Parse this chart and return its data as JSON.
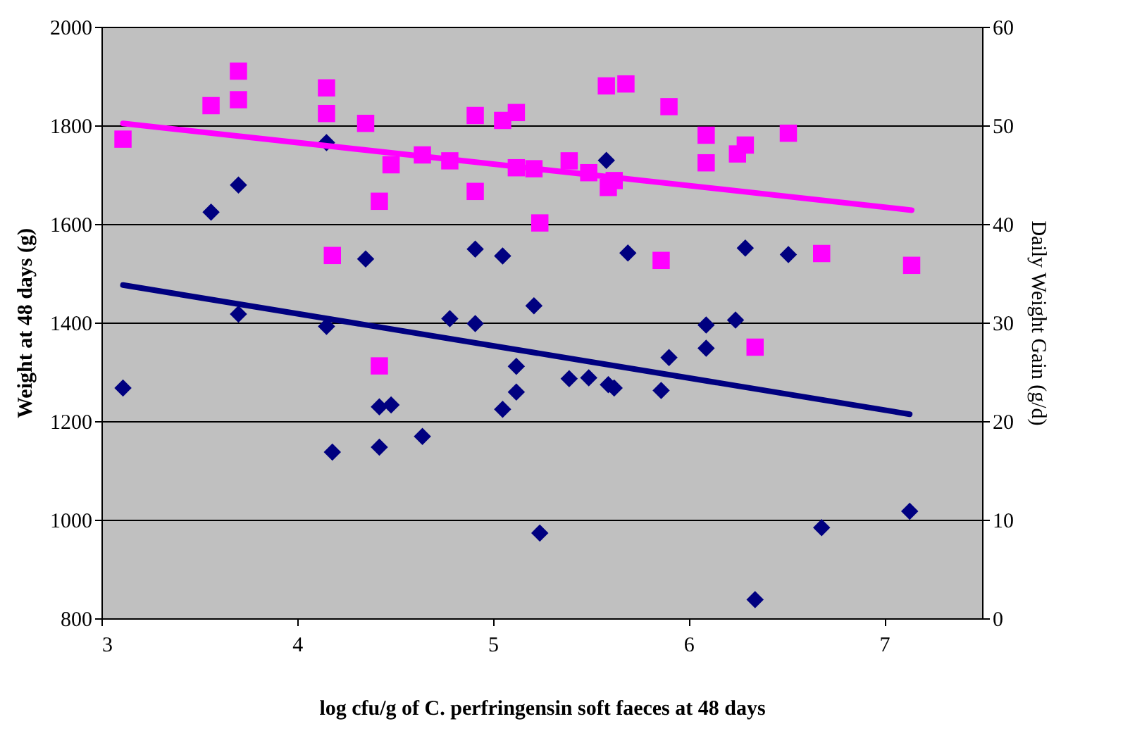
{
  "chart_data": {
    "type": "scatter",
    "xlabel": "log cfu/g of C. perfringensin soft faeces at 48 days",
    "ylabel": "Weight at 48 days (g)",
    "y2label": "Daily Weight Gain (g/d)",
    "xlim": [
      3,
      7.5
    ],
    "xticks": [
      3,
      4,
      5,
      6,
      7
    ],
    "ylim": [
      800,
      2000
    ],
    "yticks": [
      800,
      1000,
      1200,
      1400,
      1600,
      1800,
      2000
    ],
    "y2lim": [
      0,
      60
    ],
    "y2ticks": [
      0,
      10,
      20,
      30,
      40,
      50,
      60
    ],
    "grid": "y",
    "series": [
      {
        "type": "scatter",
        "marker": "diamond",
        "color": "#000080",
        "x": [
          3.11,
          3.56,
          3.7,
          3.7,
          4.15,
          4.15,
          4.18,
          4.35,
          4.42,
          4.42,
          4.48,
          4.64,
          4.78,
          4.91,
          4.91,
          5.05,
          5.05,
          5.12,
          5.12,
          5.21,
          5.24,
          5.39,
          5.49,
          5.58,
          5.59,
          5.62,
          5.69,
          5.86,
          5.9,
          6.09,
          6.09,
          6.24,
          6.29,
          6.34,
          6.51,
          6.68,
          7.13
        ],
        "values": [
          1267,
          1624,
          1679,
          1417,
          1765,
          1392,
          1137,
          1529,
          1229,
          1147,
          1233,
          1169,
          1408,
          1549,
          1398,
          1535,
          1224,
          1311,
          1259,
          1434,
          973,
          1286,
          1288,
          1729,
          1274,
          1267,
          1541,
          1262,
          1329,
          1395,
          1348,
          1405,
          1551,
          838,
          1538,
          984,
          1017
        ]
      },
      {
        "type": "line",
        "marker": "none",
        "color": "#000080",
        "x": [
          3.11,
          7.13
        ],
        "values": [
          1476,
          1214
        ]
      },
      {
        "type": "scatter",
        "marker": "square",
        "axis": "y2",
        "color": "#ff00ff",
        "x": [
          3.11,
          3.56,
          3.7,
          3.7,
          4.15,
          4.15,
          4.18,
          4.35,
          4.42,
          4.42,
          4.48,
          4.64,
          4.78,
          4.91,
          4.91,
          5.05,
          5.12,
          5.12,
          5.21,
          5.24,
          5.39,
          5.49,
          5.58,
          5.59,
          5.62,
          5.68,
          5.86,
          5.9,
          6.09,
          6.09,
          6.25,
          6.29,
          6.34,
          6.51,
          6.68,
          7.14
        ],
        "values": [
          48.6,
          52.0,
          55.5,
          52.6,
          53.8,
          51.2,
          36.8,
          50.2,
          42.3,
          25.6,
          46.0,
          47.0,
          46.4,
          51.0,
          43.3,
          50.5,
          51.3,
          45.7,
          45.6,
          40.1,
          46.4,
          45.2,
          54.0,
          43.7,
          44.4,
          54.2,
          36.3,
          51.9,
          49.0,
          46.2,
          47.1,
          48.0,
          27.5,
          49.2,
          37.0,
          35.8
        ]
      },
      {
        "type": "line",
        "marker": "none",
        "axis": "y2",
        "color": "#ff00ff",
        "x": [
          3.11,
          7.14
        ],
        "values": [
          50.2,
          41.4
        ]
      }
    ]
  }
}
